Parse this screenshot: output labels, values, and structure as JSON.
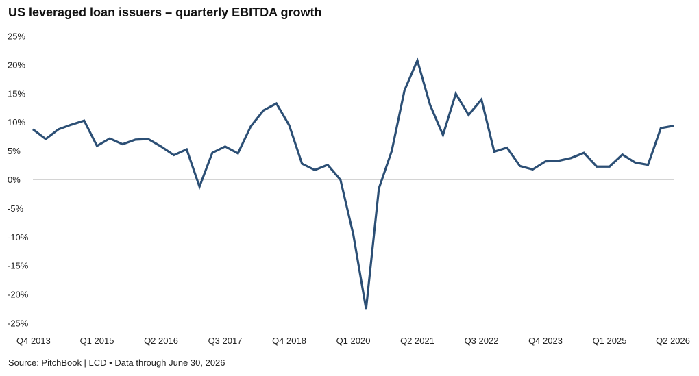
{
  "title": "US leveraged loan issuers – quarterly EBITDA growth",
  "source": "Source: PitchBook | LCD • Data through June 30, 2026",
  "colors": {
    "line": "#2c4f75",
    "zero_line": "#d4d4d4",
    "text": "#222222"
  },
  "chart_data": {
    "type": "line",
    "title": "US leveraged loan issuers – quarterly EBITDA growth",
    "xlabel": "",
    "ylabel": "",
    "y_unit": "%",
    "ylim": [
      -25,
      25
    ],
    "y_ticks": [
      25,
      20,
      15,
      10,
      5,
      0,
      -5,
      -10,
      -15,
      -20,
      -25
    ],
    "y_tick_labels": [
      "25%",
      "20%",
      "15%",
      "10%",
      "5%",
      "0%",
      "-5%",
      "-10%",
      "-15%",
      "-20%",
      "-25%"
    ],
    "x_tick_labels": [
      "Q4 2013",
      "Q1 2015",
      "Q2 2016",
      "Q3 2017",
      "Q4 2018",
      "Q1 2020",
      "Q2 2021",
      "Q3 2022",
      "Q4 2023",
      "Q1 2025",
      "Q2 2026"
    ],
    "x_tick_every": 5,
    "grid": false,
    "legend": "none",
    "series": [
      {
        "x": [
          "Q4 2013",
          "Q1 2014",
          "Q2 2014",
          "Q3 2014",
          "Q4 2014",
          "Q1 2015",
          "Q2 2015",
          "Q3 2015",
          "Q4 2015",
          "Q1 2016",
          "Q2 2016",
          "Q3 2016",
          "Q4 2016",
          "Q1 2017",
          "Q2 2017",
          "Q3 2017",
          "Q4 2017",
          "Q1 2018",
          "Q2 2018",
          "Q3 2018",
          "Q4 2018",
          "Q1 2019",
          "Q2 2019",
          "Q3 2019",
          "Q4 2019",
          "Q1 2020",
          "Q2 2020",
          "Q3 2020",
          "Q4 2020",
          "Q1 2021",
          "Q2 2021",
          "Q3 2021",
          "Q4 2021",
          "Q1 2022",
          "Q2 2022",
          "Q3 2022",
          "Q4 2022",
          "Q1 2023",
          "Q2 2023",
          "Q3 2023",
          "Q4 2023",
          "Q1 2024",
          "Q2 2024",
          "Q3 2024",
          "Q4 2024",
          "Q1 2025",
          "Q2 2025",
          "Q3 2025",
          "Q4 2025",
          "Q1 2026",
          "Q2 2026"
        ],
        "values": [
          8.8,
          7.1,
          8.8,
          9.6,
          10.3,
          5.9,
          7.2,
          6.2,
          7.0,
          7.1,
          5.8,
          4.3,
          5.3,
          -1.2,
          4.7,
          5.8,
          4.6,
          9.3,
          12.1,
          13.3,
          9.5,
          2.8,
          1.7,
          2.6,
          0.0,
          -9.5,
          -22.5,
          -1.5,
          5.0,
          15.6,
          20.8,
          13.0,
          7.8,
          15.0,
          11.3,
          14.0,
          4.9,
          5.6,
          2.4,
          1.8,
          3.2,
          3.3,
          3.8,
          4.7,
          2.3,
          2.3,
          4.4,
          3.0,
          2.6,
          9.0,
          9.4
        ]
      }
    ]
  }
}
